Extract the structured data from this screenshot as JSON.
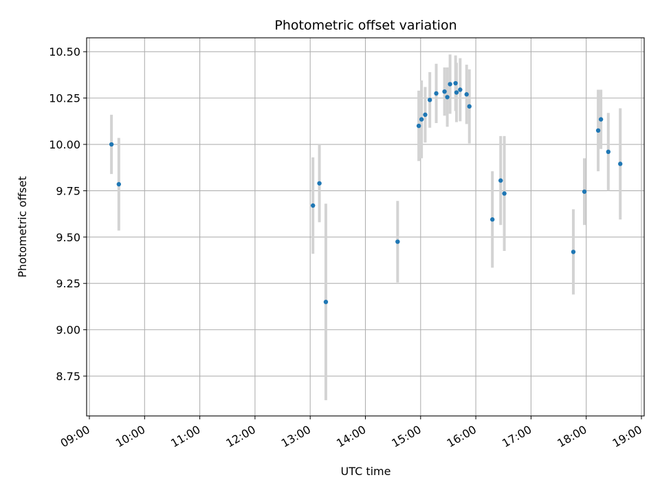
{
  "chart_data": {
    "type": "scatter",
    "title": "Photometric offset variation",
    "xlabel": "UTC time",
    "ylabel": "Photometric offset",
    "x_ticks": [
      "09:00",
      "10:00",
      "11:00",
      "12:00",
      "13:00",
      "14:00",
      "15:00",
      "16:00",
      "17:00",
      "18:00",
      "19:00"
    ],
    "y_ticks": [
      "8.75",
      "9.00",
      "9.25",
      "9.50",
      "9.75",
      "10.00",
      "10.25",
      "10.50"
    ],
    "xlim": [
      "08:57",
      "19:03"
    ],
    "ylim": [
      8.535,
      10.575
    ],
    "grid": true,
    "colors": {
      "point": "#1f77b4",
      "errorbar": "#d3d3d3"
    },
    "points": [
      {
        "x": "09:24",
        "y": 10.0,
        "err": 0.16
      },
      {
        "x": "09:32",
        "y": 9.785,
        "err": 0.25
      },
      {
        "x": "13:03",
        "y": 9.67,
        "err": 0.26
      },
      {
        "x": "13:10",
        "y": 9.79,
        "err": 0.21
      },
      {
        "x": "13:17",
        "y": 9.15,
        "err": 0.53
      },
      {
        "x": "14:35",
        "y": 9.475,
        "err": 0.22
      },
      {
        "x": "14:58",
        "y": 10.1,
        "err": 0.19
      },
      {
        "x": "15:01",
        "y": 10.135,
        "err": 0.21
      },
      {
        "x": "15:05",
        "y": 10.16,
        "err": 0.15
      },
      {
        "x": "15:10",
        "y": 10.24,
        "err": 0.15
      },
      {
        "x": "15:17",
        "y": 10.275,
        "err": 0.16
      },
      {
        "x": "15:26",
        "y": 10.285,
        "err": 0.13
      },
      {
        "x": "15:29",
        "y": 10.255,
        "err": 0.16
      },
      {
        "x": "15:32",
        "y": 10.325,
        "err": 0.16
      },
      {
        "x": "15:38",
        "y": 10.33,
        "err": 0.15
      },
      {
        "x": "15:39",
        "y": 10.28,
        "err": 0.16
      },
      {
        "x": "15:43",
        "y": 10.295,
        "err": 0.17
      },
      {
        "x": "15:50",
        "y": 10.27,
        "err": 0.16
      },
      {
        "x": "15:53",
        "y": 10.205,
        "err": 0.2
      },
      {
        "x": "16:18",
        "y": 9.595,
        "err": 0.26
      },
      {
        "x": "16:27",
        "y": 9.805,
        "err": 0.24
      },
      {
        "x": "16:31",
        "y": 9.735,
        "err": 0.31
      },
      {
        "x": "17:46",
        "y": 9.42,
        "err": 0.23
      },
      {
        "x": "17:58",
        "y": 9.745,
        "err": 0.18
      },
      {
        "x": "18:13",
        "y": 10.075,
        "err": 0.22
      },
      {
        "x": "18:16",
        "y": 10.135,
        "err": 0.16
      },
      {
        "x": "18:24",
        "y": 9.96,
        "err": 0.21
      },
      {
        "x": "18:37",
        "y": 9.895,
        "err": 0.3
      }
    ]
  }
}
